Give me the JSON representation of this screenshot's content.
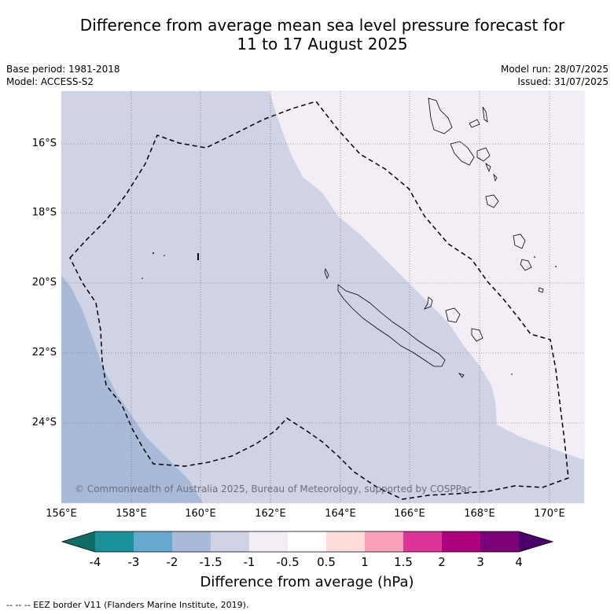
{
  "header": {
    "title_line1": "Difference from average mean sea level pressure forecast for",
    "title_line2": "11 to 17 August 2025",
    "base_period": "Base period: 1981-2018",
    "model": "Model: ACCESS-S2",
    "model_run": "Model run: 28/07/2025",
    "issued": "Issued: 31/07/2025"
  },
  "map": {
    "lat_labels": [
      "16°S",
      "18°S",
      "20°S",
      "22°S",
      "24°S"
    ],
    "lon_labels": [
      "156°E",
      "158°E",
      "160°E",
      "162°E",
      "164°E",
      "166°E",
      "168°E",
      "170°E"
    ],
    "copyright": "© Commonwealth of Australia 2025, Bureau of Meteorology, supported by COSPPac",
    "fill_colors": {
      "minus2_to_minus1_5": "#a9bad8",
      "minus1_5_to_minus1": "#d0d2e6",
      "minus1_to_minus0_5": "#f3eef6"
    }
  },
  "colorbar": {
    "ticks": [
      "-4",
      "-3",
      "-2",
      "-1.5",
      "-1",
      "-0.5",
      "0.5",
      "1",
      "1.5",
      "2",
      "3",
      "4"
    ],
    "colors": [
      "#0e6e64",
      "#1a9099",
      "#66a9cf",
      "#a9bad8",
      "#d0d2e6",
      "#f3eef6",
      "#ffffff",
      "#fddbd8",
      "#f9a0bb",
      "#dd3497",
      "#ae017e",
      "#7a0177",
      "#49006a"
    ],
    "label": "Difference from average (hPa)"
  },
  "legend": {
    "eez_note": "--  --  -- EEZ border V11 (Flanders Marine Institute, 2019)."
  }
}
